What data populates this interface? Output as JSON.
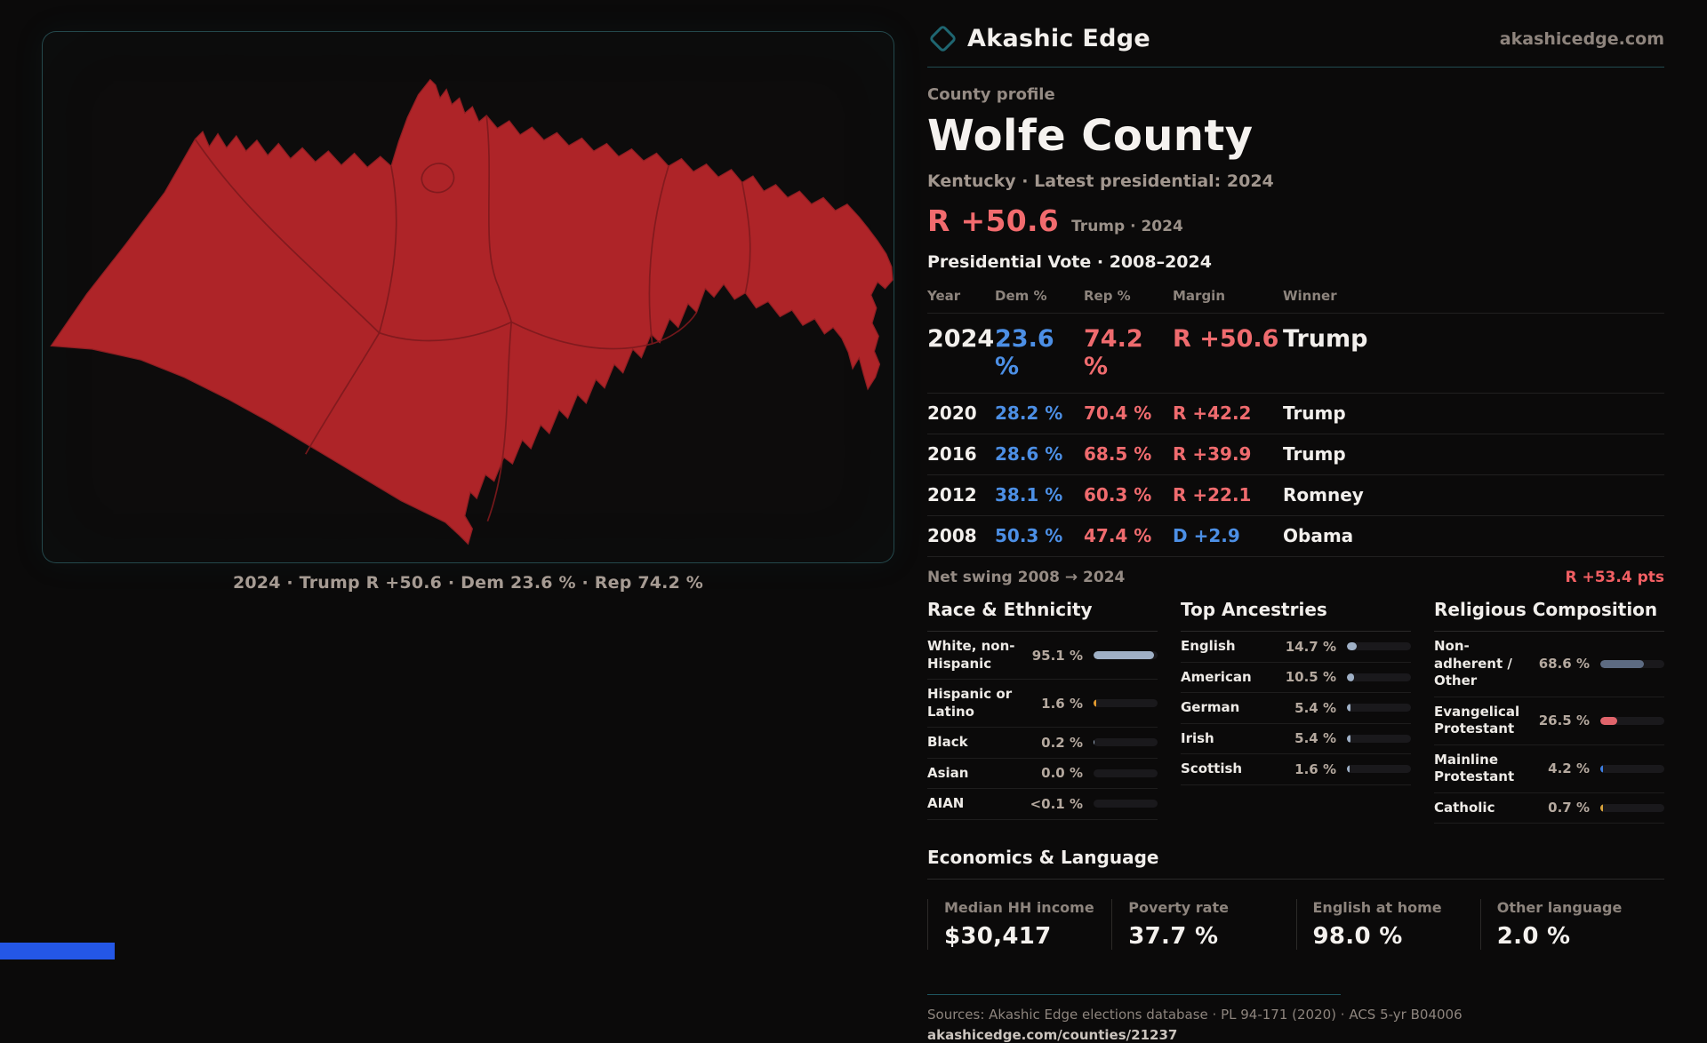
{
  "brand": {
    "name": "Akashic Edge",
    "domain": "akashicedge.com"
  },
  "profile": {
    "kicker": "County profile",
    "title": "Wolfe County",
    "subtitle": "Kentucky · Latest presidential: 2024",
    "headline_margin": "R +50.6",
    "headline_note": "Trump · 2024"
  },
  "map": {
    "caption": "2024 · Trump R +50.6 · Dem 23.6 % · Rep 74.2 %",
    "fill_color": "#AE2428",
    "border_color": "#7E191D"
  },
  "vote_table": {
    "title": "Presidential Vote · 2008–2024",
    "columns": [
      "Year",
      "Dem %",
      "Rep %",
      "Margin",
      "Winner"
    ],
    "rows": [
      {
        "year": "2024",
        "dem": "23.6 %",
        "rep": "74.2 %",
        "margin": "R +50.6",
        "margin_party": "R",
        "winner": "Trump",
        "emphasis": true
      },
      {
        "year": "2020",
        "dem": "28.2 %",
        "rep": "70.4 %",
        "margin": "R +42.2",
        "margin_party": "R",
        "winner": "Trump",
        "emphasis": false
      },
      {
        "year": "2016",
        "dem": "28.6 %",
        "rep": "68.5 %",
        "margin": "R +39.9",
        "margin_party": "R",
        "winner": "Trump",
        "emphasis": false
      },
      {
        "year": "2012",
        "dem": "38.1 %",
        "rep": "60.3 %",
        "margin": "R +22.1",
        "margin_party": "R",
        "winner": "Romney",
        "emphasis": false
      },
      {
        "year": "2008",
        "dem": "50.3 %",
        "rep": "47.4 %",
        "margin": "D +2.9",
        "margin_party": "D",
        "winner": "Obama",
        "emphasis": false
      }
    ]
  },
  "net_swing": {
    "label": "Net swing 2008 → 2024",
    "value": "R +53.4 pts"
  },
  "sections": [
    {
      "title": "Race & Ethnicity",
      "rows": [
        {
          "label": "White, non-Hispanic",
          "value": "95.1 %",
          "pct": 95.1,
          "color": "#9FB0C6"
        },
        {
          "label": "Hispanic or Latino",
          "value": "1.6 %",
          "pct": 1.6,
          "color": "#E0992F"
        },
        {
          "label": "Black",
          "value": "0.2 %",
          "pct": 0.2,
          "color": "#9FB0C6"
        },
        {
          "label": "Asian",
          "value": "0.0 %",
          "pct": 0,
          "color": "#9FB0C6"
        },
        {
          "label": "AIAN",
          "value": "<0.1 %",
          "pct": 0.1,
          "color": "#9FB0C6"
        }
      ]
    },
    {
      "title": "Top Ancestries",
      "rows": [
        {
          "label": "English",
          "value": "14.7 %",
          "pct": 14.7,
          "color": "#9FB0C6"
        },
        {
          "label": "American",
          "value": "10.5 %",
          "pct": 10.5,
          "color": "#9FB0C6"
        },
        {
          "label": "German",
          "value": "5.4 %",
          "pct": 5.4,
          "color": "#9FB0C6"
        },
        {
          "label": "Irish",
          "value": "5.4 %",
          "pct": 5.4,
          "color": "#9FB0C6"
        },
        {
          "label": "Scottish",
          "value": "1.6 %",
          "pct": 1.6,
          "color": "#9FB0C6"
        }
      ]
    },
    {
      "title": "Religious Composition",
      "rows": [
        {
          "label": "Non-adherent / Other",
          "value": "68.6 %",
          "pct": 68.6,
          "color": "#5D6B82"
        },
        {
          "label": "Evangelical Protestant",
          "value": "26.5 %",
          "pct": 26.5,
          "color": "#E0646B"
        },
        {
          "label": "Mainline Protestant",
          "value": "4.2 %",
          "pct": 4.2,
          "color": "#3D7EE2"
        },
        {
          "label": "Catholic",
          "value": "0.7 %",
          "pct": 0.7,
          "color": "#D9A33C"
        }
      ]
    }
  ],
  "economics": {
    "title": "Economics & Language",
    "stats": [
      {
        "label": "Median HH income",
        "value": "$30,417"
      },
      {
        "label": "Poverty rate",
        "value": "37.7 %"
      },
      {
        "label": "English at home",
        "value": "98.0 %"
      },
      {
        "label": "Other language",
        "value": "2.0 %"
      }
    ]
  },
  "footer": {
    "sources": "Sources: Akashic Edge elections database · PL 94-171 (2020) · ACS 5-yr B04006",
    "url": "akashicedge.com/counties/21237"
  },
  "colors": {
    "accent_red": "#F26B6E",
    "dem_blue": "#4C8FE5",
    "teal_border": "#1F6671"
  }
}
